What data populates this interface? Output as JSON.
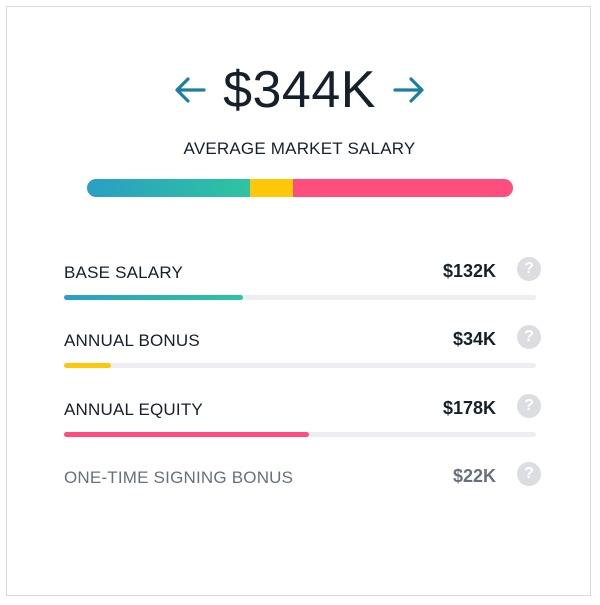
{
  "header": {
    "total": "$344K",
    "subtitle": "AVERAGE MARKET SALARY"
  },
  "colors": {
    "accent_arrow": "#1d7fa0",
    "base": "#2a9fc4",
    "base_end": "#2ec4a0",
    "bonus": "#ffc70a",
    "equity": "#ff4d7d",
    "track": "#eeeef2"
  },
  "icons": {
    "prev": "arrow-left-icon",
    "next": "arrow-right-icon",
    "help": "question-circle-icon"
  },
  "breakdown": [
    {
      "label": "BASE SALARY",
      "value": "$132K",
      "amount": 132,
      "share_of_row_bar": 0.38,
      "color": "base"
    },
    {
      "label": "ANNUAL BONUS",
      "value": "$34K",
      "amount": 34,
      "share_of_row_bar": 0.1,
      "color": "bonus"
    },
    {
      "label": "ANNUAL EQUITY",
      "value": "$178K",
      "amount": 178,
      "share_of_row_bar": 0.52,
      "color": "equity"
    },
    {
      "label": "ONE-TIME SIGNING BONUS",
      "value": "$22K",
      "amount": 22,
      "share_of_row_bar": 0,
      "color": "none"
    }
  ],
  "stacked_bar": {
    "segments": [
      {
        "name": "base",
        "amount": 132
      },
      {
        "name": "bonus",
        "amount": 34
      },
      {
        "name": "equity",
        "amount": 178
      }
    ]
  }
}
